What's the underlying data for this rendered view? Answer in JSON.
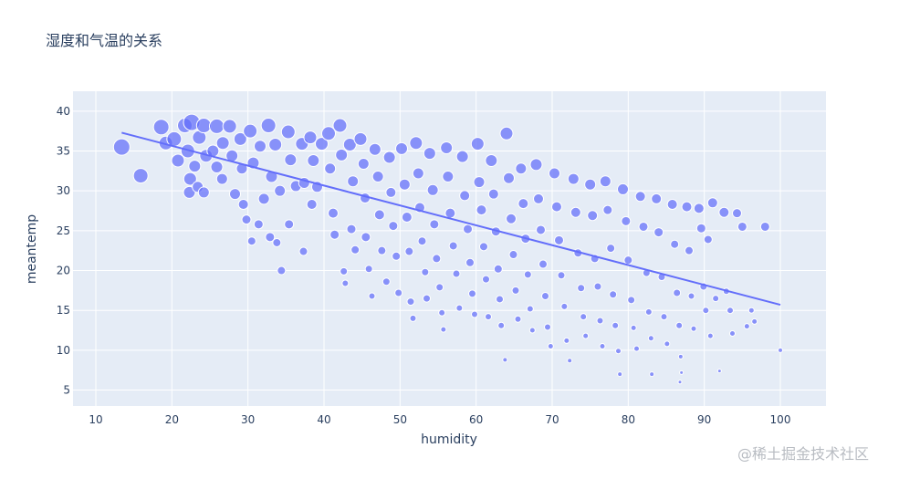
{
  "chart_data": {
    "type": "scatter",
    "title": "湿度和气温的关系",
    "xlabel": "humidity",
    "ylabel": "meantemp",
    "xlim": [
      7,
      106
    ],
    "ylim": [
      3,
      42.5
    ],
    "xticks": [
      10,
      20,
      30,
      40,
      50,
      60,
      70,
      80,
      90,
      100
    ],
    "yticks": [
      5,
      10,
      15,
      20,
      25,
      30,
      35,
      40
    ],
    "grid": true,
    "legend": "none",
    "marker_color": "#636efa",
    "plot_background": "#e5ecf6",
    "trendline": {
      "x": [
        13.4,
        100
      ],
      "y": [
        37.3,
        15.7
      ],
      "color": "#636efa"
    },
    "series": [
      {
        "marker": "circle",
        "points": [
          [
            13.4,
            35.5,
            18
          ],
          [
            15.9,
            31.9,
            16
          ],
          [
            18.6,
            38.0,
            17
          ],
          [
            19.2,
            36.0,
            15
          ],
          [
            20.3,
            36.5,
            16
          ],
          [
            20.8,
            33.8,
            14
          ],
          [
            21.7,
            38.2,
            16
          ],
          [
            22.1,
            35.0,
            15
          ],
          [
            22.6,
            38.6,
            18
          ],
          [
            22.4,
            31.5,
            14
          ],
          [
            22.3,
            29.8,
            13
          ],
          [
            23.0,
            33.1,
            13
          ],
          [
            23.6,
            36.7,
            15
          ],
          [
            23.4,
            30.5,
            12
          ],
          [
            24.2,
            38.2,
            16
          ],
          [
            24.5,
            34.4,
            14
          ],
          [
            24.2,
            29.8,
            12
          ],
          [
            25.4,
            35.0,
            13
          ],
          [
            25.9,
            38.1,
            16
          ],
          [
            25.9,
            33.0,
            13
          ],
          [
            26.7,
            36.0,
            14
          ],
          [
            26.6,
            31.5,
            12
          ],
          [
            27.6,
            38.1,
            15
          ],
          [
            27.9,
            34.4,
            13
          ],
          [
            28.3,
            29.6,
            12
          ],
          [
            29.0,
            36.5,
            14
          ],
          [
            29.2,
            32.8,
            12
          ],
          [
            29.4,
            28.3,
            11
          ],
          [
            29.8,
            26.4,
            10
          ],
          [
            30.3,
            37.5,
            15
          ],
          [
            30.7,
            33.5,
            13
          ],
          [
            30.5,
            23.7,
            9
          ],
          [
            31.4,
            25.8,
            10
          ],
          [
            31.6,
            35.6,
            13
          ],
          [
            32.1,
            29.0,
            12
          ],
          [
            32.7,
            38.2,
            16
          ],
          [
            33.1,
            31.8,
            13
          ],
          [
            32.9,
            24.2,
            10
          ],
          [
            33.6,
            35.8,
            14
          ],
          [
            34.2,
            30.0,
            12
          ],
          [
            33.8,
            23.5,
            9
          ],
          [
            34.4,
            20.0,
            9
          ],
          [
            35.3,
            37.4,
            15
          ],
          [
            35.6,
            33.9,
            13
          ],
          [
            35.4,
            25.8,
            10
          ],
          [
            36.3,
            30.6,
            12
          ],
          [
            37.1,
            35.9,
            14
          ],
          [
            37.4,
            31.0,
            12
          ],
          [
            37.3,
            22.4,
            9
          ],
          [
            38.2,
            36.7,
            14
          ],
          [
            38.6,
            33.8,
            13
          ],
          [
            38.4,
            28.3,
            11
          ],
          [
            39.1,
            30.5,
            12
          ],
          [
            39.7,
            35.9,
            14
          ],
          [
            40.6,
            37.2,
            15
          ],
          [
            40.8,
            32.8,
            12
          ],
          [
            41.2,
            27.2,
            11
          ],
          [
            41.4,
            24.5,
            10
          ],
          [
            42.1,
            38.2,
            15
          ],
          [
            42.3,
            34.5,
            13
          ],
          [
            42.6,
            19.9,
            8
          ],
          [
            42.8,
            18.4,
            7
          ],
          [
            43.4,
            35.8,
            14
          ],
          [
            43.8,
            31.2,
            12
          ],
          [
            43.6,
            25.2,
            10
          ],
          [
            44.1,
            22.6,
            9
          ],
          [
            44.8,
            36.5,
            14
          ],
          [
            45.2,
            33.4,
            12
          ],
          [
            45.4,
            29.1,
            11
          ],
          [
            45.5,
            24.2,
            10
          ],
          [
            45.9,
            20.2,
            8
          ],
          [
            46.3,
            16.8,
            7
          ],
          [
            46.7,
            35.2,
            13
          ],
          [
            47.1,
            31.8,
            12
          ],
          [
            47.3,
            27.0,
            11
          ],
          [
            47.6,
            22.5,
            9
          ],
          [
            48.2,
            18.6,
            8
          ],
          [
            48.6,
            34.2,
            13
          ],
          [
            48.8,
            29.8,
            11
          ],
          [
            49.1,
            25.6,
            10
          ],
          [
            49.5,
            21.8,
            9
          ],
          [
            49.8,
            17.2,
            8
          ],
          [
            50.2,
            35.3,
            13
          ],
          [
            50.6,
            30.8,
            12
          ],
          [
            50.9,
            26.7,
            11
          ],
          [
            51.2,
            22.4,
            9
          ],
          [
            51.4,
            16.1,
            8
          ],
          [
            51.7,
            14.0,
            7
          ],
          [
            52.1,
            36.0,
            14
          ],
          [
            52.4,
            32.2,
            12
          ],
          [
            52.6,
            27.9,
            11
          ],
          [
            52.9,
            23.7,
            9
          ],
          [
            53.3,
            19.8,
            8
          ],
          [
            53.5,
            16.5,
            8
          ],
          [
            53.9,
            34.7,
            13
          ],
          [
            54.3,
            30.1,
            12
          ],
          [
            54.5,
            25.8,
            10
          ],
          [
            54.8,
            21.5,
            9
          ],
          [
            55.2,
            17.9,
            8
          ],
          [
            55.5,
            14.7,
            7
          ],
          [
            55.7,
            12.6,
            6
          ],
          [
            56.1,
            35.4,
            13
          ],
          [
            56.3,
            31.8,
            12
          ],
          [
            56.6,
            27.2,
            11
          ],
          [
            57.0,
            23.1,
            9
          ],
          [
            57.4,
            19.6,
            8
          ],
          [
            57.8,
            15.3,
            7
          ],
          [
            58.2,
            34.3,
            13
          ],
          [
            58.5,
            29.4,
            11
          ],
          [
            58.9,
            25.2,
            10
          ],
          [
            59.2,
            21.0,
            9
          ],
          [
            59.5,
            17.1,
            8
          ],
          [
            59.8,
            14.5,
            7
          ],
          [
            60.2,
            35.9,
            14
          ],
          [
            60.4,
            31.1,
            12
          ],
          [
            60.7,
            27.6,
            11
          ],
          [
            61.0,
            23.0,
            9
          ],
          [
            61.3,
            18.9,
            8
          ],
          [
            61.6,
            14.2,
            7
          ],
          [
            62.0,
            33.8,
            13
          ],
          [
            62.3,
            29.6,
            11
          ],
          [
            62.6,
            24.9,
            10
          ],
          [
            62.9,
            20.2,
            9
          ],
          [
            63.1,
            16.4,
            8
          ],
          [
            63.3,
            13.1,
            7
          ],
          [
            63.8,
            8.8,
            5
          ],
          [
            64.0,
            37.2,
            14
          ],
          [
            64.3,
            31.6,
            12
          ],
          [
            64.6,
            26.5,
            11
          ],
          [
            64.9,
            22.0,
            9
          ],
          [
            65.2,
            17.5,
            8
          ],
          [
            65.5,
            13.9,
            7
          ],
          [
            65.9,
            32.8,
            12
          ],
          [
            66.2,
            28.4,
            11
          ],
          [
            66.5,
            24.0,
            10
          ],
          [
            66.8,
            19.5,
            8
          ],
          [
            67.1,
            15.2,
            7
          ],
          [
            67.4,
            12.5,
            6
          ],
          [
            67.9,
            33.3,
            13
          ],
          [
            68.2,
            29.0,
            11
          ],
          [
            68.5,
            25.1,
            10
          ],
          [
            68.8,
            20.8,
            9
          ],
          [
            69.1,
            16.8,
            8
          ],
          [
            69.4,
            12.9,
            7
          ],
          [
            69.8,
            10.5,
            6
          ],
          [
            70.3,
            32.2,
            12
          ],
          [
            70.6,
            28.0,
            11
          ],
          [
            70.9,
            23.8,
            10
          ],
          [
            71.2,
            19.4,
            8
          ],
          [
            71.6,
            15.5,
            7
          ],
          [
            71.9,
            11.2,
            6
          ],
          [
            72.3,
            8.7,
            5
          ],
          [
            72.8,
            31.5,
            12
          ],
          [
            73.1,
            27.3,
            11
          ],
          [
            73.4,
            22.2,
            9
          ],
          [
            73.8,
            17.8,
            8
          ],
          [
            74.1,
            14.2,
            7
          ],
          [
            74.4,
            11.8,
            6
          ],
          [
            75.0,
            30.8,
            12
          ],
          [
            75.3,
            26.9,
            11
          ],
          [
            75.6,
            21.5,
            9
          ],
          [
            76.0,
            18.0,
            8
          ],
          [
            76.3,
            13.7,
            7
          ],
          [
            76.6,
            10.5,
            6
          ],
          [
            77.0,
            31.2,
            12
          ],
          [
            77.3,
            27.6,
            10
          ],
          [
            77.7,
            22.8,
            9
          ],
          [
            78.0,
            17.0,
            8
          ],
          [
            78.3,
            13.1,
            7
          ],
          [
            78.7,
            9.9,
            6
          ],
          [
            78.9,
            7.0,
            5
          ],
          [
            79.3,
            30.2,
            12
          ],
          [
            79.7,
            26.2,
            10
          ],
          [
            80.0,
            21.3,
            9
          ],
          [
            80.4,
            16.3,
            8
          ],
          [
            80.7,
            12.8,
            6
          ],
          [
            81.1,
            10.2,
            6
          ],
          [
            81.6,
            29.3,
            11
          ],
          [
            82.0,
            25.5,
            10
          ],
          [
            82.4,
            19.7,
            8
          ],
          [
            82.7,
            14.8,
            7
          ],
          [
            83.0,
            11.5,
            6
          ],
          [
            83.1,
            7.0,
            5
          ],
          [
            83.7,
            29.0,
            11
          ],
          [
            84.0,
            24.8,
            10
          ],
          [
            84.4,
            19.2,
            8
          ],
          [
            84.7,
            14.2,
            7
          ],
          [
            85.1,
            10.8,
            6
          ],
          [
            85.8,
            28.3,
            11
          ],
          [
            86.1,
            23.3,
            9
          ],
          [
            86.4,
            17.2,
            8
          ],
          [
            86.7,
            13.1,
            7
          ],
          [
            86.9,
            9.2,
            5
          ],
          [
            87.0,
            7.2,
            4
          ],
          [
            86.8,
            6.0,
            4
          ],
          [
            87.7,
            28.0,
            11
          ],
          [
            88.0,
            22.5,
            9
          ],
          [
            88.3,
            16.8,
            7
          ],
          [
            88.6,
            12.7,
            6
          ],
          [
            89.3,
            27.8,
            11
          ],
          [
            89.6,
            25.3,
            10
          ],
          [
            89.9,
            18.0,
            8
          ],
          [
            90.2,
            15.0,
            7
          ],
          [
            90.5,
            23.9,
            9
          ],
          [
            90.8,
            11.8,
            6
          ],
          [
            91.1,
            28.5,
            11
          ],
          [
            91.5,
            16.5,
            7
          ],
          [
            92.0,
            7.4,
            4
          ],
          [
            92.6,
            27.3,
            11
          ],
          [
            92.9,
            17.4,
            7
          ],
          [
            93.4,
            15.0,
            7
          ],
          [
            93.7,
            12.1,
            6
          ],
          [
            94.3,
            27.2,
            10
          ],
          [
            95.0,
            25.5,
            10
          ],
          [
            95.6,
            13.0,
            6
          ],
          [
            96.2,
            15.0,
            6
          ],
          [
            96.6,
            13.6,
            6
          ],
          [
            98.0,
            25.5,
            10
          ],
          [
            100.0,
            10.0,
            5
          ]
        ]
      }
    ]
  },
  "watermark": "@稀土掘金技术社区"
}
